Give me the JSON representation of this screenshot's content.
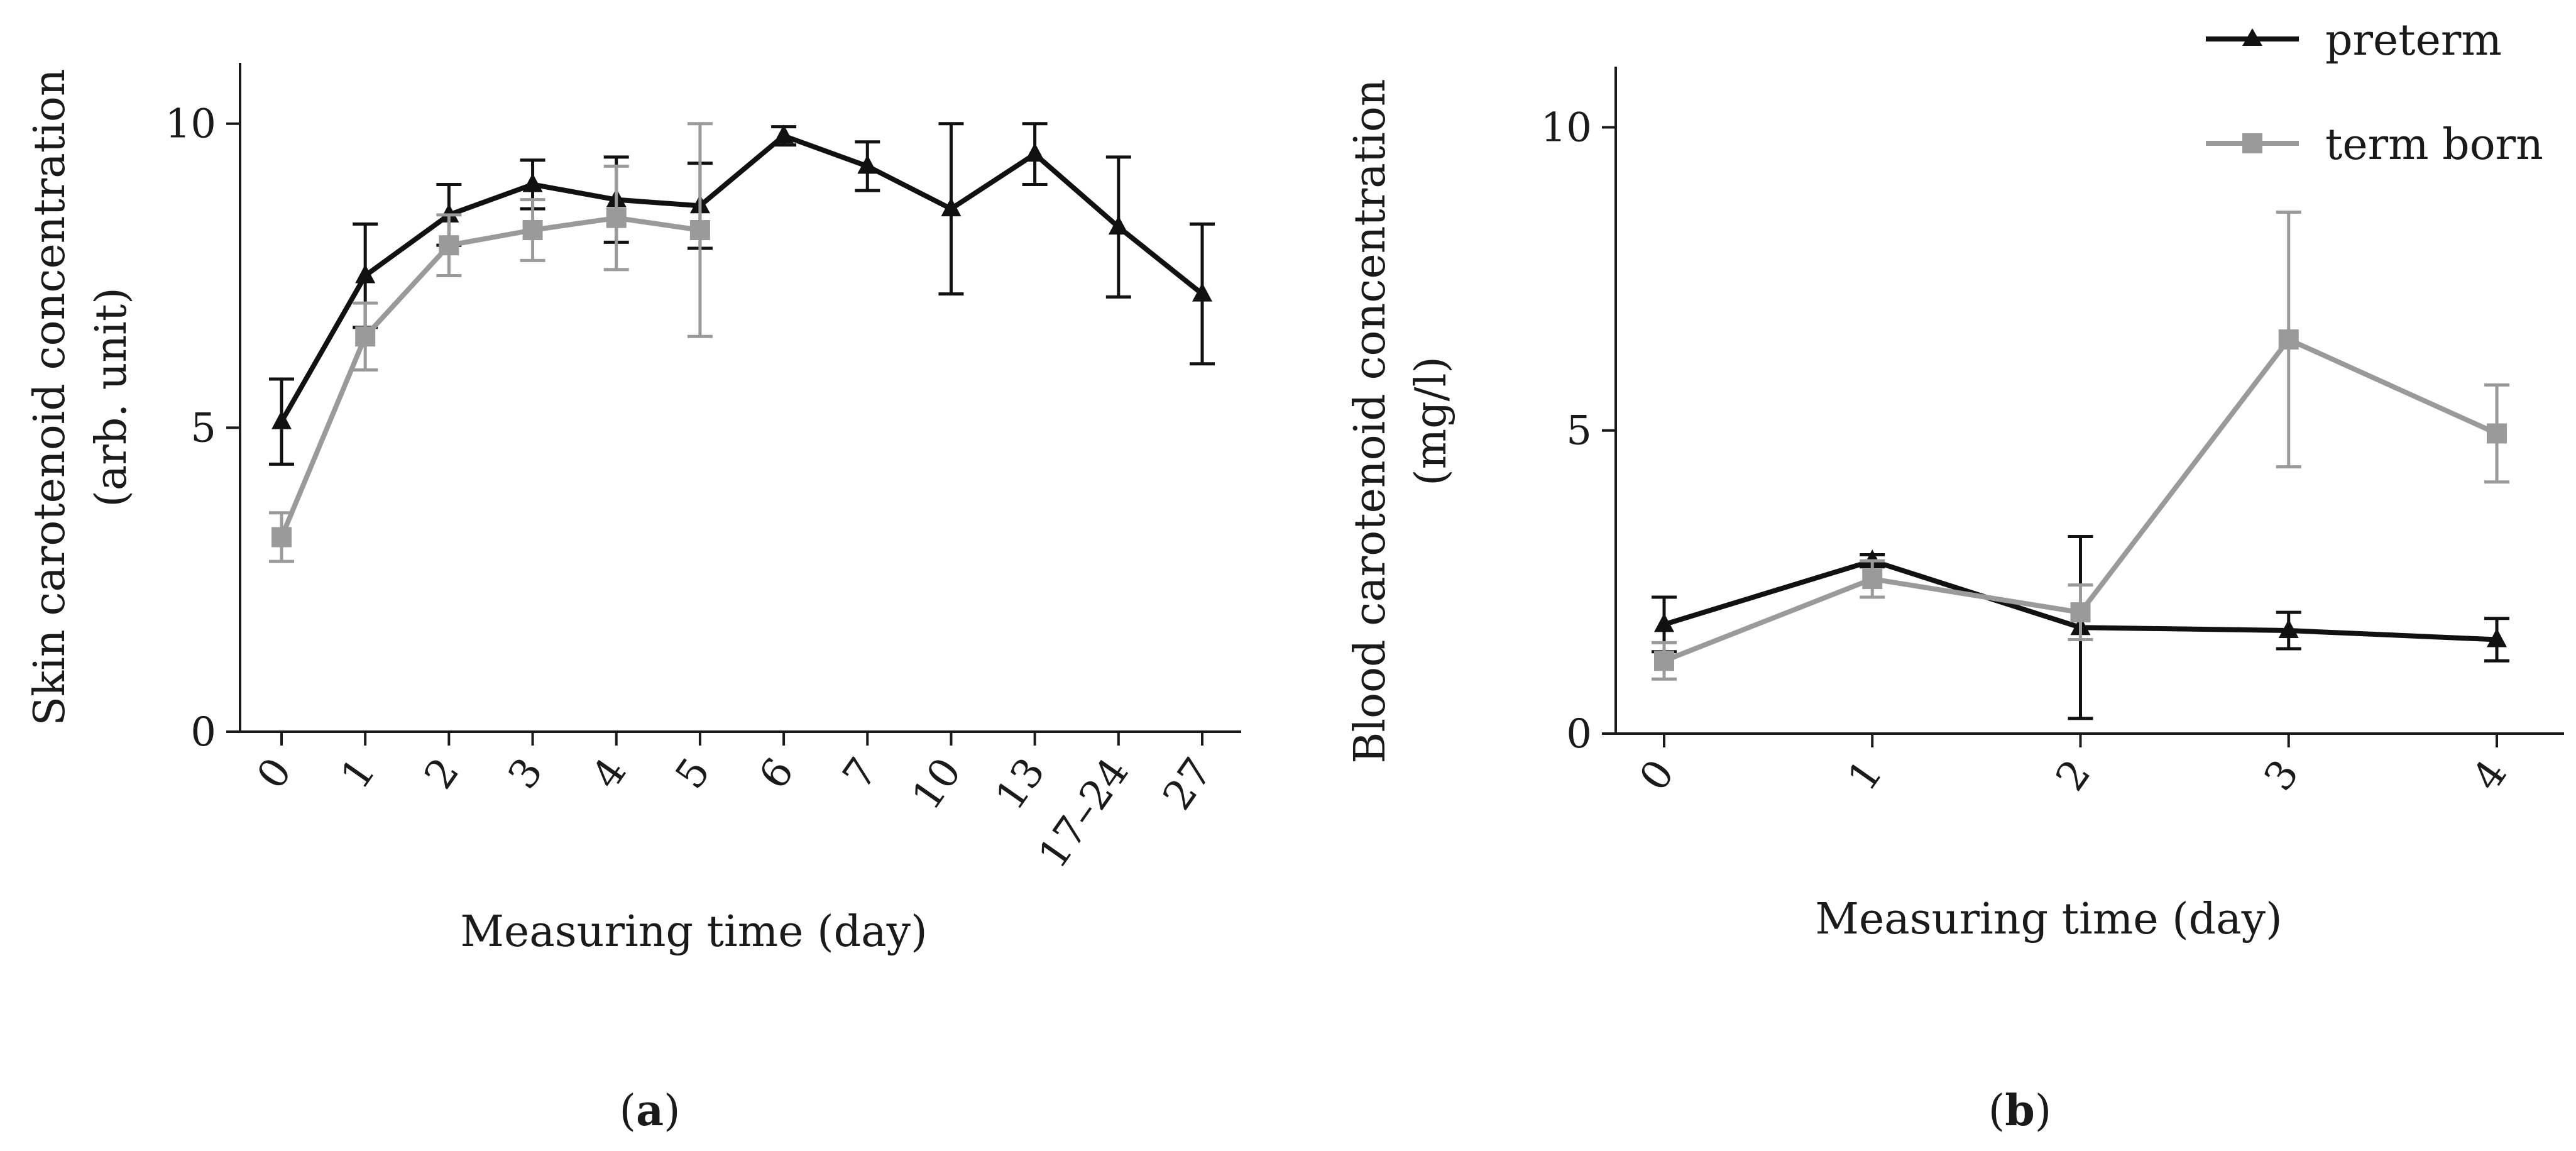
{
  "chart_data": [
    {
      "type": "line",
      "panel_label": "a",
      "xlabel": "Measuring time (day)",
      "ylabel_line1": "Skin carotenoid concentration",
      "ylabel_line2": "(arb. unit)",
      "ylim": [
        0,
        11
      ],
      "yticks": [
        0,
        5,
        10
      ],
      "categories": [
        "0",
        "1",
        "2",
        "3",
        "4",
        "5",
        "6",
        "7",
        "10",
        "13",
        "17–24",
        "27"
      ],
      "series": [
        {
          "name": "preterm",
          "color": "#111111",
          "marker": "triangle",
          "values": [
            5.1,
            7.5,
            8.5,
            9.0,
            8.75,
            8.65,
            9.8,
            9.3,
            8.6,
            9.5,
            8.3,
            7.2
          ],
          "err": [
            0.7,
            0.85,
            0.5,
            0.4,
            0.7,
            0.7,
            0.15,
            0.4,
            1.4,
            0.5,
            1.15,
            1.15
          ]
        },
        {
          "name": "term born",
          "color": "#9a9a9a",
          "marker": "square",
          "values": [
            3.2,
            6.5,
            8.0,
            8.25,
            8.45,
            8.25,
            null,
            null,
            null,
            null,
            null,
            null
          ],
          "err": [
            0.4,
            0.55,
            0.5,
            0.5,
            0.85,
            1.75,
            null,
            null,
            null,
            null,
            null,
            null
          ]
        }
      ]
    },
    {
      "type": "line",
      "panel_label": "b",
      "xlabel": "Measuring time (day)",
      "ylabel_line1": "Blood carotenoid concentration",
      "ylabel_line2": "(mg/l)",
      "ylim": [
        0,
        11
      ],
      "yticks": [
        0,
        5,
        10
      ],
      "categories": [
        "0",
        "1",
        "2",
        "3",
        "4"
      ],
      "series": [
        {
          "name": "preterm",
          "color": "#111111",
          "marker": "triangle",
          "values": [
            1.8,
            2.85,
            1.75,
            1.7,
            1.55
          ],
          "err": [
            0.45,
            0.1,
            1.5,
            0.3,
            0.35
          ]
        },
        {
          "name": "term born",
          "color": "#9a9a9a",
          "marker": "square",
          "values": [
            1.2,
            2.55,
            2.0,
            6.5,
            4.95
          ],
          "err": [
            0.3,
            0.3,
            0.45,
            2.1,
            0.8
          ]
        }
      ],
      "legend": {
        "position": "top-right",
        "entries": [
          "preterm",
          "term born"
        ]
      }
    }
  ]
}
